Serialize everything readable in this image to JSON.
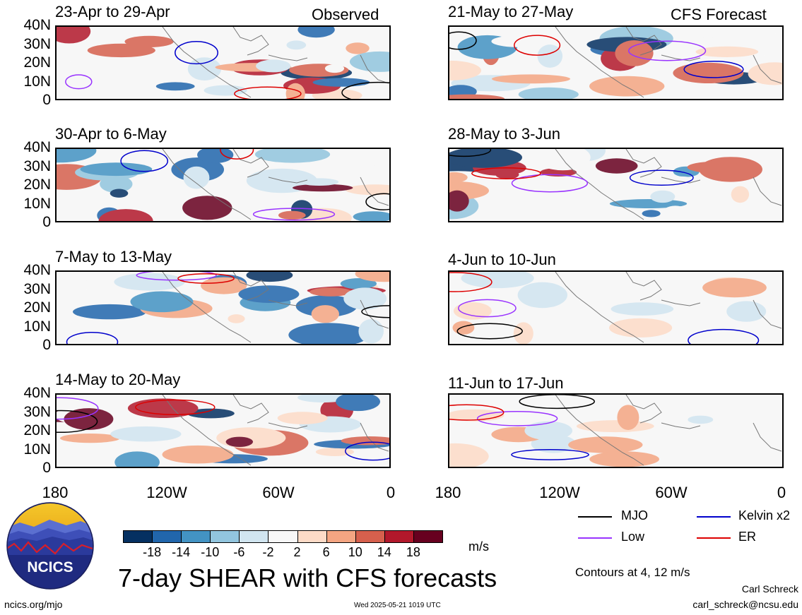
{
  "header": {
    "left_label": "Observed",
    "right_label": "CFS Forecast"
  },
  "panels_left": [
    {
      "title": "23-Apr to 29-Apr"
    },
    {
      "title": "30-Apr to 6-May"
    },
    {
      "title": "7-May to 13-May"
    },
    {
      "title": "14-May to 20-May"
    }
  ],
  "panels_right": [
    {
      "title": "21-May to 27-May"
    },
    {
      "title": "28-May to 3-Jun"
    },
    {
      "title": "4-Jun to 10-Jun"
    },
    {
      "title": "11-Jun to 17-Jun"
    }
  ],
  "y_ticks": [
    "40N",
    "30N",
    "20N",
    "10N",
    "0"
  ],
  "x_ticks": [
    "180",
    "120W",
    "60W",
    "0"
  ],
  "legend": {
    "items": [
      {
        "label": "MJO",
        "color": "#000000"
      },
      {
        "label": "Kelvin x2",
        "color": "#0000cc"
      },
      {
        "label": "Low",
        "color": "#9933ff"
      },
      {
        "label": "ER",
        "color": "#dd0000"
      }
    ],
    "contours_note": "Contours at 4, 12 m/s"
  },
  "colorbar": {
    "ticks": [
      "-18",
      "-14",
      "-10",
      "-6",
      "-2",
      "2",
      "6",
      "10",
      "14",
      "18"
    ],
    "colors": [
      "#053061",
      "#2166ac",
      "#4393c3",
      "#92c5de",
      "#d1e5f0",
      "#f7f7f7",
      "#fddbc7",
      "#f4a582",
      "#d6604d",
      "#b2182b",
      "#67001f"
    ],
    "unit": "m/s"
  },
  "logo_text": "NCICS",
  "main_title": "7-day SHEAR with CFS forecasts",
  "footer": {
    "left": "ncics.org/mjo",
    "center": "Wed 2025-05-21 1019 UTC",
    "author": "Carl Schreck",
    "email": "carl_schreck@ncsu.edu"
  },
  "chart_data": {
    "type": "heatmap",
    "variable": "SHEAR",
    "unit": "m/s",
    "x_axis": {
      "labels": [
        "180",
        "120W",
        "60W",
        "0"
      ],
      "range_deg_lon": [
        -180,
        0
      ]
    },
    "y_axis": {
      "labels": [
        "40N",
        "30N",
        "20N",
        "10N",
        "0"
      ],
      "range_deg_lat": [
        0,
        40
      ]
    },
    "color_levels": [
      -18,
      -14,
      -10,
      -6,
      -2,
      2,
      6,
      10,
      14,
      18
    ],
    "contour_levels": [
      4,
      12
    ],
    "contour_series": [
      "MJO",
      "Kelvin x2",
      "Low",
      "ER"
    ],
    "panels": [
      {
        "period": "23-Apr to 29-Apr",
        "source": "Observed"
      },
      {
        "period": "30-Apr to 6-May",
        "source": "Observed"
      },
      {
        "period": "7-May to 13-May",
        "source": "Observed"
      },
      {
        "period": "14-May to 20-May",
        "source": "Observed"
      },
      {
        "period": "21-May to 27-May",
        "source": "CFS Forecast"
      },
      {
        "period": "28-May to 3-Jun",
        "source": "CFS Forecast"
      },
      {
        "period": "4-Jun to 10-Jun",
        "source": "CFS Forecast"
      },
      {
        "period": "11-Jun to 17-Jun",
        "source": "CFS Forecast"
      }
    ]
  }
}
